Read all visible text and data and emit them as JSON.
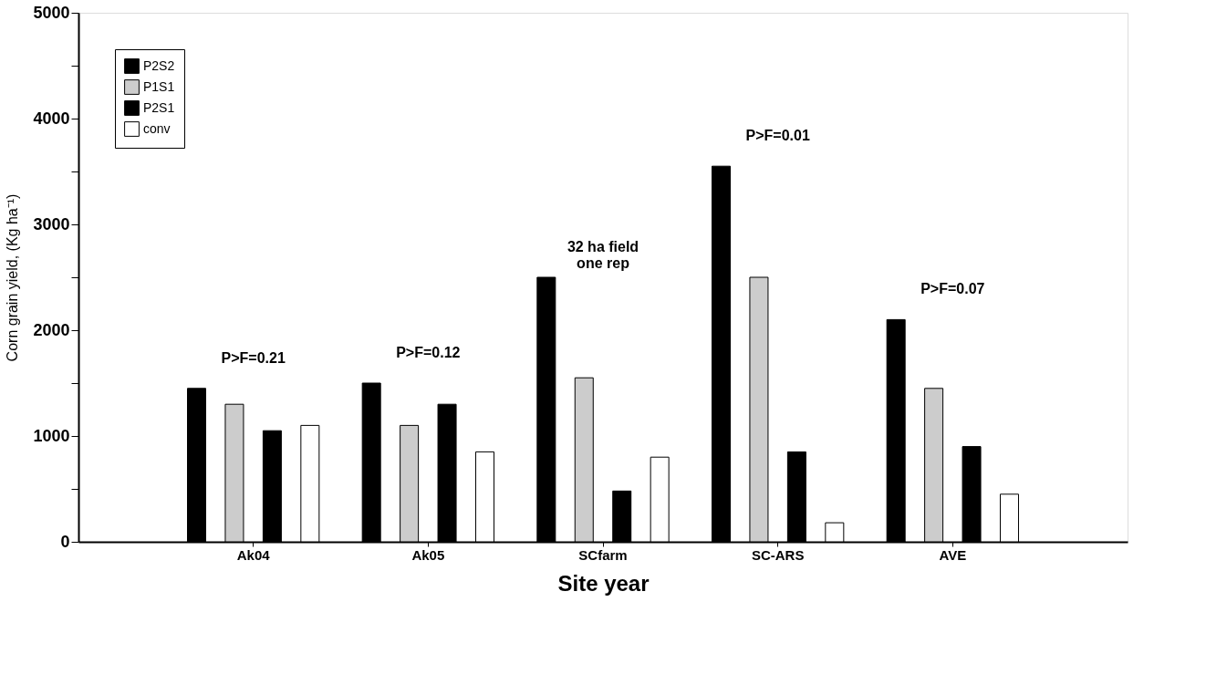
{
  "chart_data": {
    "type": "bar",
    "xlabel": "Site year",
    "ylabel": "Corn grain yield, (Kg ha⁻¹)",
    "categories": [
      "Ak04",
      "Ak05",
      "SCfarm",
      "SC-ARS",
      "AVE"
    ],
    "series": [
      {
        "name": "P2S2",
        "color": "#000000",
        "values": [
          1450,
          1500,
          2500,
          3550,
          2100
        ]
      },
      {
        "name": "P1S1",
        "color": "#cccccc",
        "values": [
          1300,
          1100,
          1550,
          2500,
          1450
        ]
      },
      {
        "name": "P2S1",
        "color": "#000000",
        "values": [
          1050,
          1300,
          480,
          850,
          900
        ]
      },
      {
        "name": "conv",
        "color": "#ffffff",
        "values": [
          1100,
          850,
          800,
          180,
          450
        ]
      }
    ],
    "ylim": [
      0,
      5000
    ],
    "yticks": [
      0,
      {
        "value": 500,
        "label": null
      },
      1000,
      {
        "value": 1500,
        "label": null
      },
      2000,
      {
        "value": 2500,
        "label": null
      },
      3000,
      {
        "value": 3500,
        "label": null
      },
      4000,
      {
        "value": 4500,
        "label": null
      },
      5000
    ],
    "annotations": [
      "P>F=0.21",
      "P>F=0.12",
      "32 ha field\none rep",
      "P>F=0.01",
      "P>F=0.07"
    ],
    "legend": "top left",
    "grid": false
  }
}
